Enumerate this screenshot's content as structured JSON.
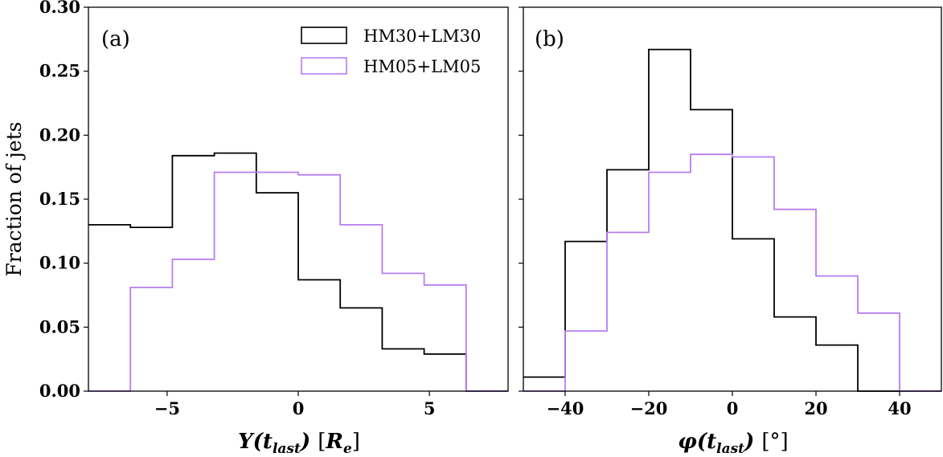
{
  "figure": {
    "ylabel": "Fraction of jets",
    "colors": {
      "black": "#000000",
      "purple": "#b77df2"
    },
    "yticks": [
      0.0,
      0.05,
      0.1,
      0.15,
      0.2,
      0.25,
      0.3
    ],
    "ylim": [
      0,
      0.3
    ]
  },
  "legend": [
    {
      "label": "HM30+LM30",
      "color": "#000000"
    },
    {
      "label": "HM05+LM05",
      "color": "#b77df2"
    }
  ],
  "chart_data": [
    {
      "type": "histogram",
      "panel_label": "(a)",
      "xlabel": "Y(t_last) [R_e]",
      "xlim": [
        -8.0,
        8.0
      ],
      "ylim": [
        0,
        0.3
      ],
      "xticks": [
        -5,
        0,
        5
      ],
      "xtick_labels": [
        "−5",
        "0",
        "5"
      ],
      "legend_location": "upper right",
      "series": [
        {
          "name": "HM30+LM30",
          "color": "#000000",
          "bin_edges": [
            -8.0,
            -6.4,
            -4.8,
            -3.2,
            -1.6,
            0.0,
            1.6,
            3.2,
            4.8,
            6.4,
            8.0
          ],
          "values": [
            0.13,
            0.128,
            0.184,
            0.186,
            0.155,
            0.087,
            0.065,
            0.033,
            0.029,
            0.0
          ]
        },
        {
          "name": "HM05+LM05",
          "color": "#b77df2",
          "bin_edges": [
            -8.0,
            -6.4,
            -4.8,
            -3.2,
            -1.6,
            0.0,
            1.6,
            3.2,
            4.8,
            6.4,
            8.0
          ],
          "values": [
            0.0,
            0.081,
            0.103,
            0.171,
            0.171,
            0.169,
            0.13,
            0.092,
            0.083,
            0.0
          ]
        }
      ]
    },
    {
      "type": "histogram",
      "panel_label": "(b)",
      "xlabel": "φ(t_last) [°]",
      "xlim": [
        -50,
        50
      ],
      "ylim": [
        0,
        0.3
      ],
      "xticks": [
        -40,
        -20,
        0,
        20,
        40
      ],
      "xtick_labels": [
        "−40",
        "−20",
        "0",
        "20",
        "40"
      ],
      "series": [
        {
          "name": "HM30+LM30",
          "color": "#000000",
          "bin_edges": [
            -50,
            -40,
            -30,
            -20,
            -10,
            0,
            10,
            20,
            30,
            40,
            50
          ],
          "values": [
            0.011,
            0.117,
            0.173,
            0.267,
            0.22,
            0.119,
            0.058,
            0.036,
            0.0,
            0.0
          ]
        },
        {
          "name": "HM05+LM05",
          "color": "#b77df2",
          "bin_edges": [
            -50,
            -40,
            -30,
            -20,
            -10,
            0,
            10,
            20,
            30,
            40,
            50
          ],
          "values": [
            0.0,
            0.047,
            0.124,
            0.171,
            0.185,
            0.183,
            0.142,
            0.09,
            0.061,
            0.0
          ]
        }
      ]
    }
  ]
}
